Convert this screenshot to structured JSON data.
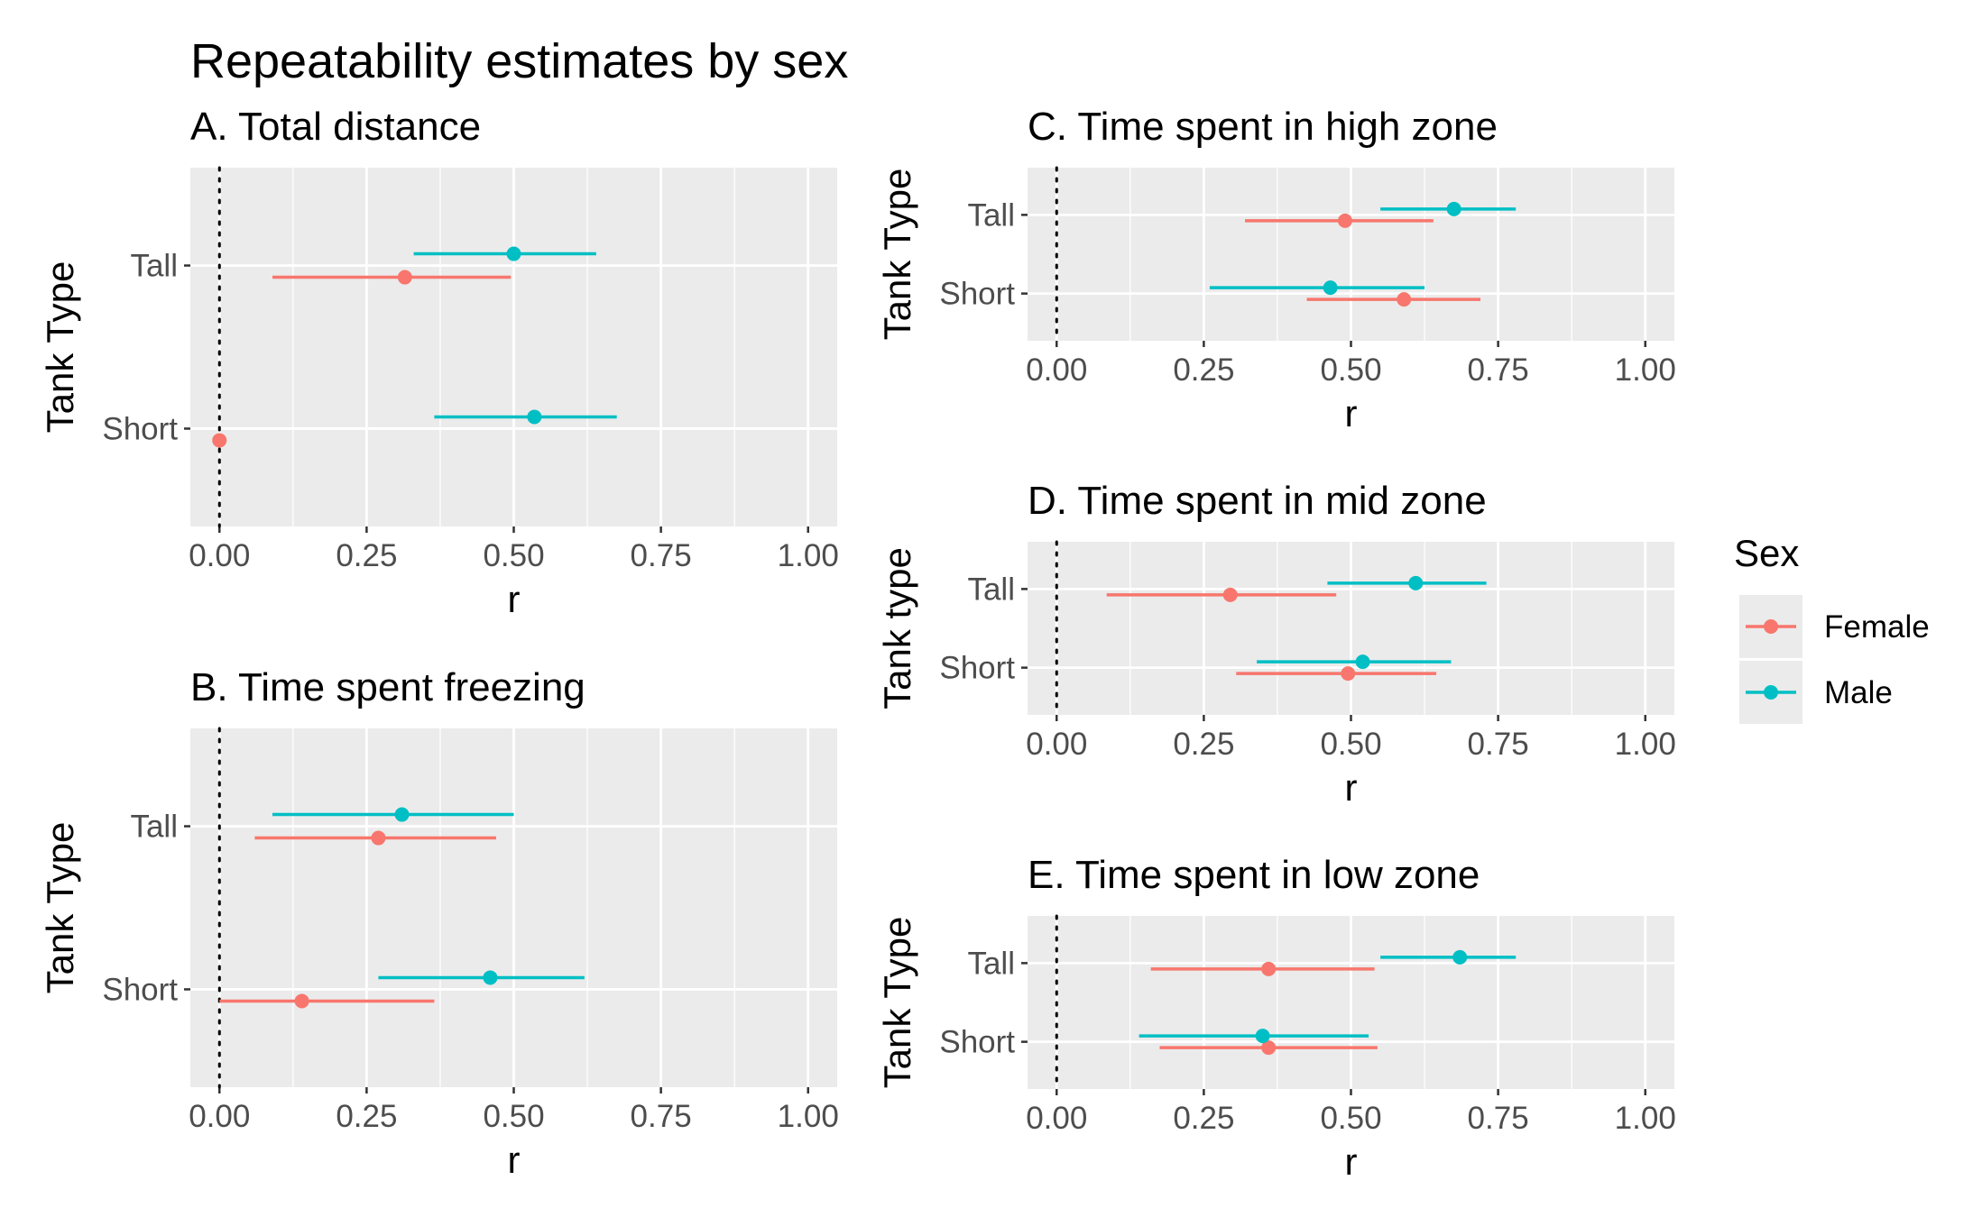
{
  "figure": {
    "title": "Repeatability estimates by sex",
    "legend": {
      "title": "Sex",
      "entries": [
        {
          "label": "Female",
          "color": "#f8766d"
        },
        {
          "label": "Male",
          "color": "#00bfc4"
        }
      ]
    }
  },
  "chart_data": [
    {
      "type": "scatter",
      "title": "A. Total distance",
      "xlabel": "r",
      "ylabel": "Tank Type",
      "categories": [
        "Short",
        "Tall"
      ],
      "xlim": [
        0,
        1
      ],
      "x_ticks": [
        "0.00",
        "0.25",
        "0.50",
        "0.75",
        "1.00"
      ],
      "reference_line_x": 0,
      "series": [
        {
          "name": "Female",
          "color": "#f8766d",
          "points": [
            {
              "category": "Tall",
              "x": 0.315,
              "lower": 0.09,
              "upper": 0.495
            },
            {
              "category": "Short",
              "x": 0.0,
              "lower": 0.0,
              "upper": 0.0
            }
          ]
        },
        {
          "name": "Male",
          "color": "#00bfc4",
          "points": [
            {
              "category": "Tall",
              "x": 0.5,
              "lower": 0.33,
              "upper": 0.64
            },
            {
              "category": "Short",
              "x": 0.535,
              "lower": 0.365,
              "upper": 0.675
            }
          ]
        }
      ]
    },
    {
      "type": "scatter",
      "title": "B. Time spent freezing",
      "xlabel": "r",
      "ylabel": "Tank Type",
      "categories": [
        "Short",
        "Tall"
      ],
      "xlim": [
        0,
        1
      ],
      "x_ticks": [
        "0.00",
        "0.25",
        "0.50",
        "0.75",
        "1.00"
      ],
      "reference_line_x": 0,
      "series": [
        {
          "name": "Female",
          "color": "#f8766d",
          "points": [
            {
              "category": "Tall",
              "x": 0.27,
              "lower": 0.06,
              "upper": 0.47
            },
            {
              "category": "Short",
              "x": 0.14,
              "lower": 0.0,
              "upper": 0.365
            }
          ]
        },
        {
          "name": "Male",
          "color": "#00bfc4",
          "points": [
            {
              "category": "Tall",
              "x": 0.31,
              "lower": 0.09,
              "upper": 0.5
            },
            {
              "category": "Short",
              "x": 0.46,
              "lower": 0.27,
              "upper": 0.62
            }
          ]
        }
      ]
    },
    {
      "type": "scatter",
      "title": "C. Time spent in high zone",
      "xlabel": "r",
      "ylabel": "Tank Type",
      "categories": [
        "Short",
        "Tall"
      ],
      "xlim": [
        0,
        1
      ],
      "x_ticks": [
        "0.00",
        "0.25",
        "0.50",
        "0.75",
        "1.00"
      ],
      "reference_line_x": 0,
      "series": [
        {
          "name": "Female",
          "color": "#f8766d",
          "points": [
            {
              "category": "Tall",
              "x": 0.49,
              "lower": 0.32,
              "upper": 0.64
            },
            {
              "category": "Short",
              "x": 0.59,
              "lower": 0.425,
              "upper": 0.72
            }
          ]
        },
        {
          "name": "Male",
          "color": "#00bfc4",
          "points": [
            {
              "category": "Tall",
              "x": 0.675,
              "lower": 0.55,
              "upper": 0.78
            },
            {
              "category": "Short",
              "x": 0.465,
              "lower": 0.26,
              "upper": 0.625
            }
          ]
        }
      ]
    },
    {
      "type": "scatter",
      "title": "D. Time spent in mid zone",
      "xlabel": "r",
      "ylabel": "Tank type",
      "categories": [
        "Short",
        "Tall"
      ],
      "xlim": [
        0,
        1
      ],
      "x_ticks": [
        "0.00",
        "0.25",
        "0.50",
        "0.75",
        "1.00"
      ],
      "reference_line_x": 0,
      "series": [
        {
          "name": "Female",
          "color": "#f8766d",
          "points": [
            {
              "category": "Tall",
              "x": 0.295,
              "lower": 0.085,
              "upper": 0.475
            },
            {
              "category": "Short",
              "x": 0.495,
              "lower": 0.305,
              "upper": 0.645
            }
          ]
        },
        {
          "name": "Male",
          "color": "#00bfc4",
          "points": [
            {
              "category": "Tall",
              "x": 0.61,
              "lower": 0.46,
              "upper": 0.73
            },
            {
              "category": "Short",
              "x": 0.52,
              "lower": 0.34,
              "upper": 0.67
            }
          ]
        }
      ]
    },
    {
      "type": "scatter",
      "title": "E. Time spent in low zone",
      "xlabel": "r",
      "ylabel": "Tank Type",
      "categories": [
        "Short",
        "Tall"
      ],
      "xlim": [
        0,
        1
      ],
      "x_ticks": [
        "0.00",
        "0.25",
        "0.50",
        "0.75",
        "1.00"
      ],
      "reference_line_x": 0,
      "series": [
        {
          "name": "Female",
          "color": "#f8766d",
          "points": [
            {
              "category": "Tall",
              "x": 0.36,
              "lower": 0.16,
              "upper": 0.54
            },
            {
              "category": "Short",
              "x": 0.36,
              "lower": 0.175,
              "upper": 0.545
            }
          ]
        },
        {
          "name": "Male",
          "color": "#00bfc4",
          "points": [
            {
              "category": "Tall",
              "x": 0.685,
              "lower": 0.55,
              "upper": 0.78
            },
            {
              "category": "Short",
              "x": 0.35,
              "lower": 0.14,
              "upper": 0.53
            }
          ]
        }
      ]
    }
  ]
}
